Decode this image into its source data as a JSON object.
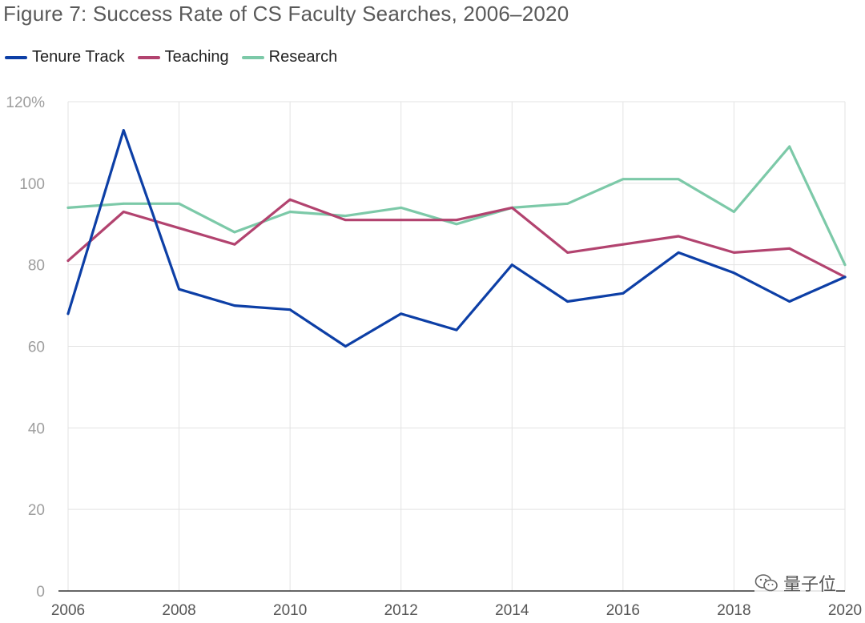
{
  "chart_data": {
    "type": "line",
    "title": "Figure 7: Success Rate of CS Faculty Searches, 2006–2020",
    "xlabel": "",
    "ylabel": "",
    "x": [
      2006,
      2007,
      2008,
      2009,
      2010,
      2011,
      2012,
      2013,
      2014,
      2015,
      2016,
      2017,
      2018,
      2019,
      2020
    ],
    "xticks": [
      "2006",
      "2008",
      "2010",
      "2012",
      "2014",
      "2016",
      "2018",
      "2020"
    ],
    "ylim": [
      0,
      120
    ],
    "yticks": [
      "0",
      "20",
      "40",
      "60",
      "80",
      "100",
      "120%"
    ],
    "legend_position": "top-left",
    "grid": true,
    "series": [
      {
        "name": "Tenure Track",
        "color": "#0D3FA6",
        "values": [
          68,
          113,
          74,
          70,
          69,
          60,
          68,
          64,
          80,
          71,
          73,
          83,
          78,
          71,
          77
        ]
      },
      {
        "name": "Teaching",
        "color": "#B2436F",
        "values": [
          81,
          93,
          89,
          85,
          96,
          91,
          91,
          91,
          94,
          83,
          85,
          87,
          83,
          84,
          77
        ]
      },
      {
        "name": "Research",
        "color": "#7CC9A8",
        "values": [
          94,
          95,
          95,
          88,
          93,
          92,
          94,
          90,
          94,
          95,
          101,
          101,
          93,
          109,
          80
        ]
      }
    ]
  },
  "watermark": {
    "text": "量子位",
    "icon": "wechat-icon"
  }
}
